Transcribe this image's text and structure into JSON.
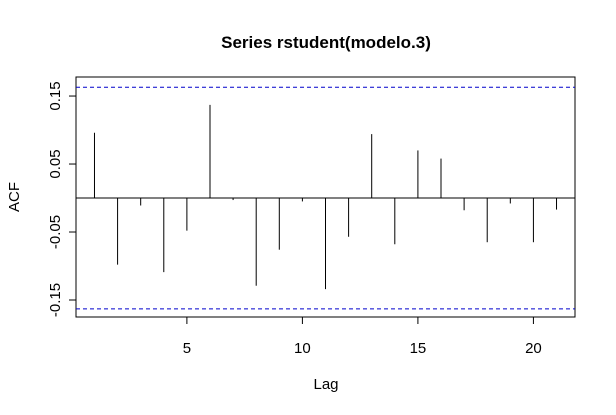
{
  "chart_data": {
    "type": "bar",
    "title": "Series rstudent(modelo.3)",
    "xlabel": "Lag",
    "ylabel": "ACF",
    "xlim": [
      0.2,
      21.8
    ],
    "ylim": [
      -0.175,
      0.178
    ],
    "x_ticks": [
      5,
      10,
      15,
      20
    ],
    "x_tick_labels": [
      "5",
      "10",
      "15",
      "20"
    ],
    "y_ticks": [
      -0.15,
      -0.05,
      0.05,
      0.15
    ],
    "y_tick_labels": [
      "-0.15",
      "-0.05",
      "0.05",
      "0.15"
    ],
    "confidence_bound": 0.163,
    "confidence_color": "#0000cc",
    "lags": [
      1,
      2,
      3,
      4,
      5,
      6,
      7,
      8,
      9,
      10,
      11,
      12,
      13,
      14,
      15,
      16,
      17,
      18,
      19,
      20,
      21
    ],
    "values": [
      0.096,
      -0.098,
      -0.011,
      -0.109,
      -0.048,
      0.137,
      -0.003,
      -0.129,
      -0.076,
      -0.005,
      -0.134,
      -0.057,
      0.094,
      -0.068,
      0.07,
      0.058,
      -0.018,
      -0.065,
      -0.008,
      -0.065,
      -0.017
    ]
  }
}
